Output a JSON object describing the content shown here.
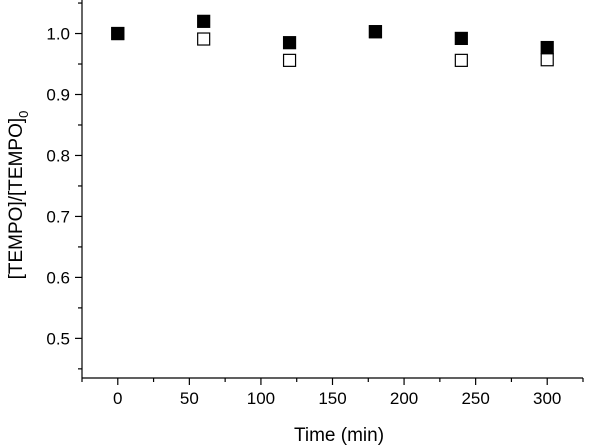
{
  "chart_data": {
    "type": "scatter",
    "title": "",
    "xlabel": "Time (min)",
    "ylabel_main": "[TEMPO]/[TEMPO]",
    "ylabel_subscript": "0",
    "xlim": [
      -25,
      325
    ],
    "ylim": [
      0.435,
      1.055
    ],
    "x_ticks": [
      0,
      50,
      100,
      150,
      200,
      250,
      300
    ],
    "x_tick_labels": [
      "0",
      "50",
      "100",
      "150",
      "200",
      "250",
      "300"
    ],
    "y_ticks": [
      0.5,
      0.6,
      0.7,
      0.8,
      0.9,
      1.0
    ],
    "y_tick_labels": [
      "0.5",
      "0.6",
      "0.7",
      "0.8",
      "0.9",
      "1.0"
    ],
    "grid": false,
    "legend": "none",
    "series": [
      {
        "marker": "filled-square",
        "color": "#000000",
        "x": [
          0,
          60,
          120,
          180,
          240,
          300
        ],
        "y": [
          1.0,
          1.02,
          0.985,
          1.003,
          0.992,
          0.977
        ]
      },
      {
        "marker": "open-square",
        "color": "#000000",
        "x": [
          0,
          60,
          120,
          180,
          240,
          300
        ],
        "y": [
          1.0,
          0.991,
          0.956,
          1.003,
          0.956,
          0.957
        ]
      }
    ]
  }
}
